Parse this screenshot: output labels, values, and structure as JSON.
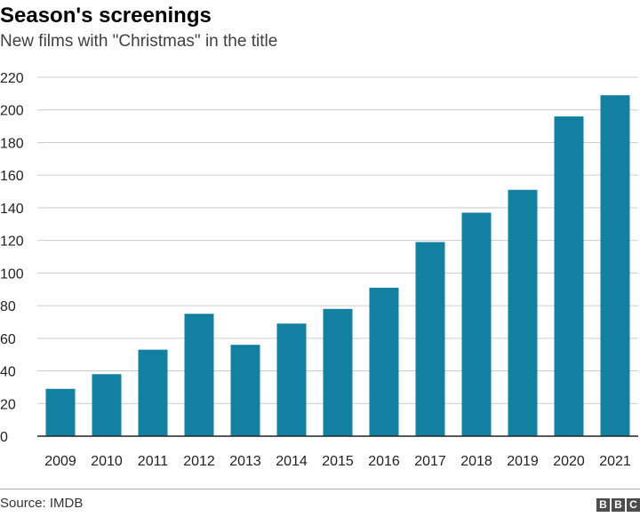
{
  "header": {
    "title": "Season's screenings",
    "subtitle": "New films with \"Christmas\" in the title"
  },
  "footer": {
    "source": "Source: IMDB",
    "logo_letters": [
      "B",
      "B",
      "C"
    ]
  },
  "colors": {
    "bar": "#1380A1",
    "grid": "#cccccc",
    "axis": "#222222"
  },
  "chart_data": {
    "type": "bar",
    "title": "Season's screenings",
    "subtitle": "New films with \"Christmas\" in the title",
    "xlabel": "",
    "ylabel": "",
    "categories": [
      "2009",
      "2010",
      "2011",
      "2012",
      "2013",
      "2014",
      "2015",
      "2016",
      "2017",
      "2018",
      "2019",
      "2020",
      "2021"
    ],
    "values": [
      29,
      38,
      53,
      75,
      56,
      69,
      78,
      91,
      119,
      137,
      151,
      196,
      209
    ],
    "ylim": [
      0,
      220
    ],
    "yticks": [
      0,
      20,
      40,
      60,
      80,
      100,
      120,
      140,
      160,
      180,
      200,
      220
    ],
    "grid": "horizontal",
    "legend": "none"
  }
}
